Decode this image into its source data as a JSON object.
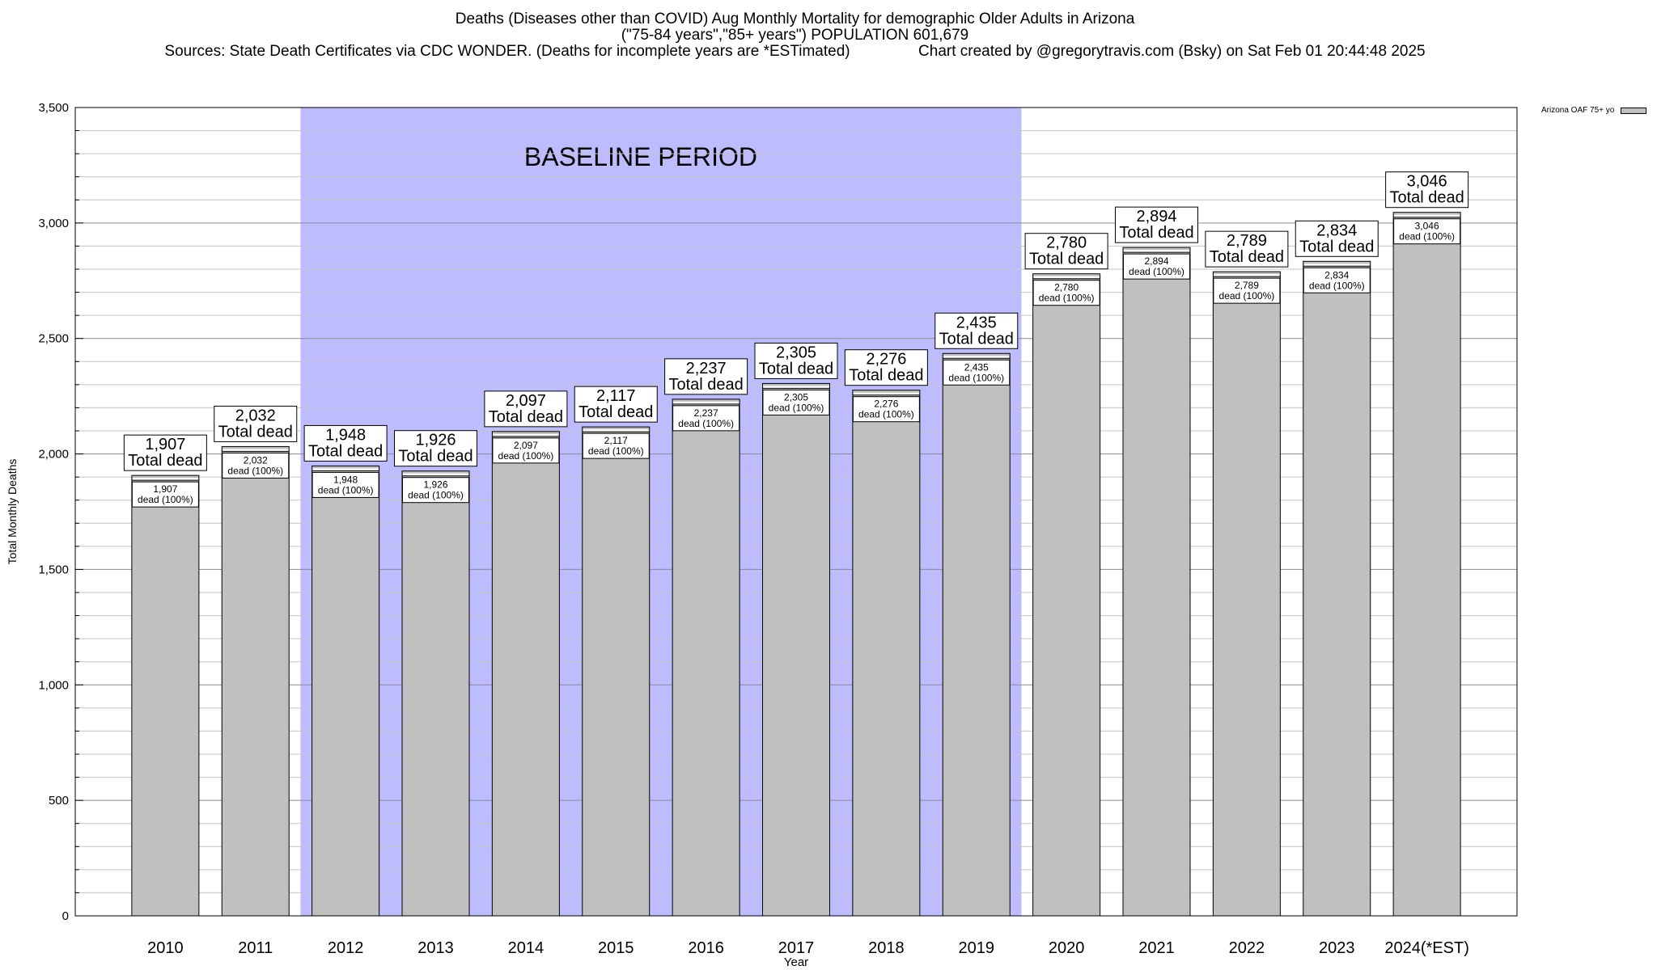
{
  "chart_data": {
    "type": "bar",
    "title": "Deaths (Diseases other than COVID) Aug Monthly Mortality for demographic Older Adults in Arizona",
    "subtitle": "(\"75-84 years\",\"85+ years\") POPULATION 601,679",
    "source_line": "Sources: State Death Certificates via CDC WONDER. (Deaths for incomplete years are *ESTimated)                Chart created by @gregorytravis.com (Bsky) on Sat Feb 01 20:44:48 2025",
    "xlabel": "Year",
    "ylabel": "Total Monthly Deaths",
    "ylim": [
      0,
      3500
    ],
    "yticks": [
      0,
      500,
      1000,
      1500,
      2000,
      2500,
      3000,
      3500
    ],
    "ytick_labels": [
      "0",
      "500",
      "1,000",
      "1,500",
      "2,000",
      "2,500",
      "3,000",
      "3,500"
    ],
    "grid": true,
    "legend_position": "top-right",
    "categories": [
      "2010",
      "2011",
      "2012",
      "2013",
      "2014",
      "2015",
      "2016",
      "2017",
      "2018",
      "2019",
      "2020",
      "2021",
      "2022",
      "2023",
      "2024(*EST)"
    ],
    "series": [
      {
        "name": "Arizona OAF 75+ yo",
        "values": [
          1907,
          2032,
          1948,
          1926,
          2097,
          2117,
          2237,
          2305,
          2276,
          2435,
          2780,
          2894,
          2789,
          2834,
          3046
        ],
        "color": "#c0c0c0"
      }
    ],
    "top_labels": [
      "1,907",
      "2,032",
      "1,948",
      "1,926",
      "2,097",
      "2,117",
      "2,237",
      "2,305",
      "2,276",
      "2,435",
      "2,780",
      "2,894",
      "2,789",
      "2,834",
      "3,046"
    ],
    "top_label_suffix": "Total dead",
    "inner_label_suffix": "dead (100%)",
    "baseline_period": {
      "label": "BASELINE PERIOD",
      "start": "2012",
      "end": "2019",
      "color": "#bcbcff"
    }
  }
}
